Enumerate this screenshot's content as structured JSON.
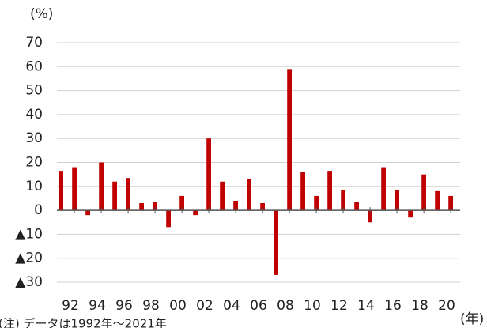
{
  "chart_data": {
    "type": "bar",
    "y_unit": "(%)",
    "x_unit": "(年)",
    "note": "(注) データは1992年～2021年",
    "categories": [
      "92",
      null,
      "94",
      null,
      "96",
      null,
      "98",
      null,
      "00",
      null,
      "02",
      null,
      "04",
      null,
      "06",
      null,
      "08",
      null,
      "10",
      null,
      "12",
      null,
      "14",
      null,
      "16",
      null,
      "18",
      null,
      "20",
      null
    ],
    "values": [
      16.5,
      18,
      -2,
      20,
      12,
      13.5,
      3,
      3.5,
      -7,
      6,
      -2,
      30,
      12,
      4,
      13,
      3,
      -27,
      59,
      16,
      6,
      16.5,
      8.5,
      3.5,
      -5,
      18,
      8.5,
      -3,
      15,
      8,
      6
    ],
    "color": "#c00000",
    "ylim": [
      -30,
      70
    ],
    "yticks": [
      {
        "value": -30,
        "label": "▲30"
      },
      {
        "value": -20,
        "label": "▲20"
      },
      {
        "value": -10,
        "label": "▲10"
      },
      0,
      10,
      20,
      30,
      40,
      50,
      60,
      70
    ],
    "grid": true
  }
}
